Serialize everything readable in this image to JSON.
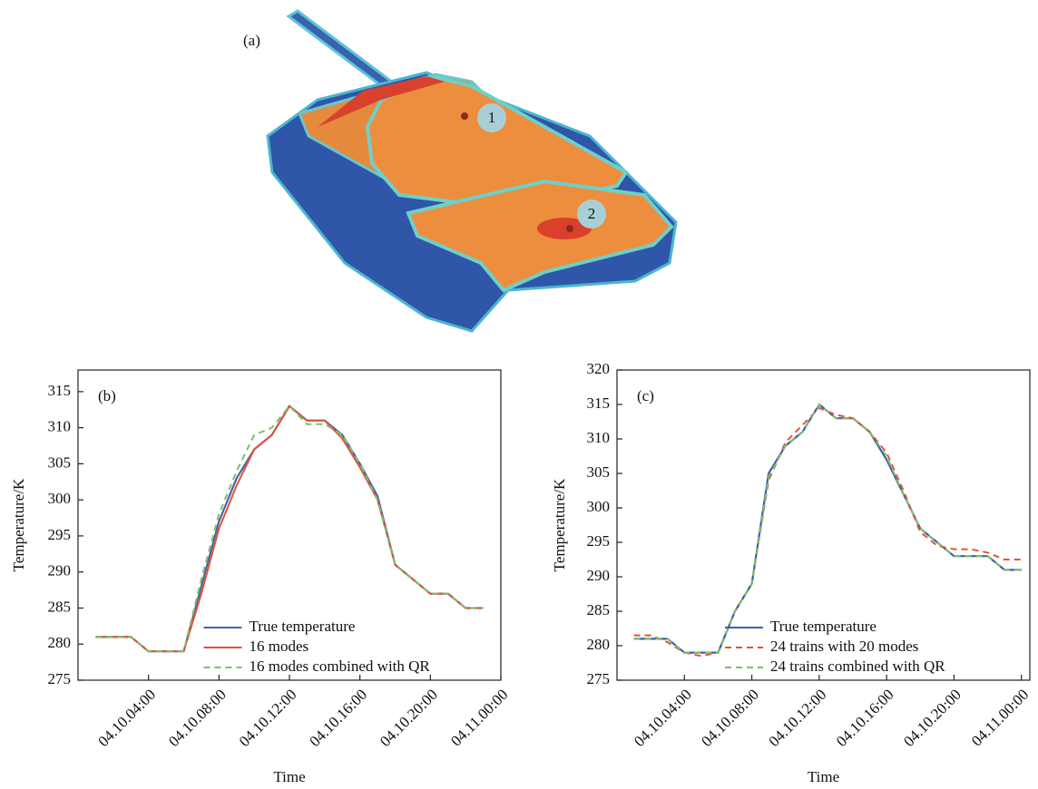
{
  "figure": {
    "panel_label": "(a)",
    "markers": [
      "1",
      "2"
    ]
  },
  "chart_data": [
    {
      "type": "line",
      "panel_label": "(b)",
      "x_label": "Time",
      "y_label": "Temperature/K",
      "x": [
        1,
        2,
        3,
        4,
        5,
        6,
        7,
        8,
        9,
        10,
        11,
        12,
        13,
        14,
        15,
        16,
        17,
        18,
        19,
        20,
        21,
        22,
        23
      ],
      "xlim": [
        0,
        24
      ],
      "xticks": [
        {
          "value": 4,
          "label": "04.10.04:00"
        },
        {
          "value": 8,
          "label": "04.10.08:00"
        },
        {
          "value": 12,
          "label": "04.10.12:00"
        },
        {
          "value": 16,
          "label": "04.10.16:00"
        },
        {
          "value": 20,
          "label": "04.10.20:00"
        },
        {
          "value": 24,
          "label": "04.11.00:00"
        }
      ],
      "ylim": [
        275,
        318
      ],
      "yticks": [
        275,
        280,
        285,
        290,
        295,
        300,
        305,
        310,
        315
      ],
      "legend": "lower right",
      "series": [
        {
          "name": "True temperature",
          "color": "#4a64a8",
          "style": "solid",
          "values": [
            281,
            281,
            281,
            279,
            279,
            279,
            288,
            297,
            303,
            307,
            309,
            313,
            311,
            311,
            309,
            305,
            300.5,
            291,
            289,
            287,
            287,
            285,
            285
          ]
        },
        {
          "name": "16 modes",
          "color": "#e0533a",
          "style": "solid",
          "values": [
            281,
            281,
            281,
            279,
            279,
            279,
            287,
            296,
            302,
            307,
            309,
            313,
            311,
            311,
            308.5,
            304.5,
            300,
            291,
            289,
            287,
            287,
            285,
            285
          ]
        },
        {
          "name": "16 modes combined with QR",
          "color": "#7cc06a",
          "style": "dashed",
          "values": [
            281,
            281,
            281,
            279,
            279,
            279,
            289,
            298,
            304,
            309,
            310,
            313,
            310.5,
            310.5,
            309,
            305,
            300,
            291,
            289,
            287,
            287,
            285,
            285
          ]
        }
      ]
    },
    {
      "type": "line",
      "panel_label": "(c)",
      "x_label": "Time",
      "y_label": "Temperature/K",
      "x": [
        1,
        2,
        3,
        4,
        5,
        6,
        7,
        8,
        9,
        10,
        11,
        12,
        13,
        14,
        15,
        16,
        17,
        18,
        19,
        20,
        21,
        22,
        23,
        24
      ],
      "xlim": [
        0,
        24.5
      ],
      "xticks": [
        {
          "value": 4,
          "label": "04.10.04:00"
        },
        {
          "value": 8,
          "label": "04.10.08:00"
        },
        {
          "value": 12,
          "label": "04.10.12:00"
        },
        {
          "value": 16,
          "label": "04.10.16:00"
        },
        {
          "value": 20,
          "label": "04.10.20:00"
        },
        {
          "value": 24,
          "label": "04.11.00:00"
        }
      ],
      "ylim": [
        275,
        320
      ],
      "yticks": [
        275,
        280,
        285,
        290,
        295,
        300,
        305,
        310,
        315,
        320
      ],
      "legend": "lower right",
      "series": [
        {
          "name": "True temperature",
          "color": "#3d5fae",
          "style": "solid",
          "values": [
            281,
            281,
            281,
            279,
            279,
            279,
            285,
            289,
            305,
            309,
            311,
            315,
            313,
            313,
            311,
            307,
            302,
            297,
            295,
            293,
            293,
            293,
            291,
            291
          ]
        },
        {
          "name": "24 trains with 20 modes",
          "color": "#e0533a",
          "style": "dashed",
          "values": [
            281.5,
            281.5,
            280.5,
            279,
            278.5,
            279,
            285,
            289,
            304,
            309.5,
            312,
            314.5,
            313.5,
            313,
            311,
            308,
            302.5,
            296.5,
            294.5,
            294,
            294,
            293.5,
            292.5,
            292.5
          ]
        },
        {
          "name": "24 trains combined with QR",
          "color": "#7cc06a",
          "style": "dashed",
          "values": [
            281,
            281,
            281,
            279,
            279,
            279,
            285,
            289,
            304.5,
            309,
            311,
            315,
            313,
            313,
            311,
            307.5,
            302,
            297,
            295,
            293,
            293,
            293,
            291,
            291
          ]
        }
      ]
    }
  ]
}
